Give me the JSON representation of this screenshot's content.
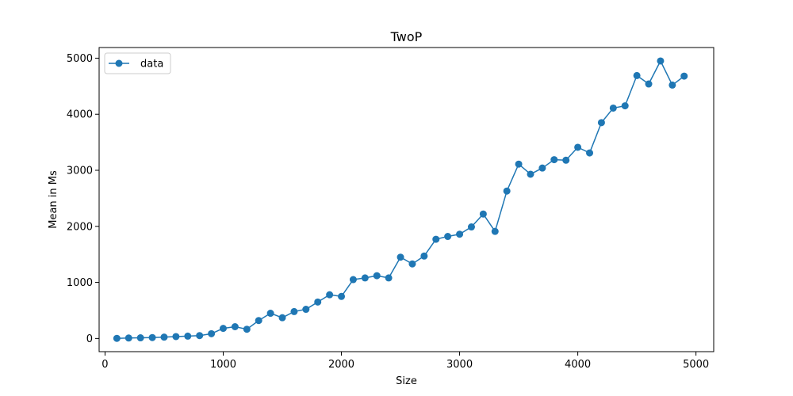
{
  "chart_data": {
    "type": "line",
    "title": "TwoP",
    "xlabel": "Size",
    "ylabel": "Mean in Ms",
    "xlim": [
      -50,
      5150
    ],
    "ylim": [
      -235,
      5190
    ],
    "xticks": [
      0,
      1000,
      2000,
      3000,
      4000,
      5000
    ],
    "xtick_labels": [
      "0",
      "1000",
      "2000",
      "3000",
      "4000",
      "5000"
    ],
    "yticks": [
      0,
      1000,
      2000,
      3000,
      4000,
      5000
    ],
    "ytick_labels": [
      "0",
      "1000",
      "2000",
      "3000",
      "4000",
      "5000"
    ],
    "grid": false,
    "legend_position": "top-left",
    "color": "#1f77b4",
    "series": [
      {
        "name": "data",
        "marker": "circle",
        "x": [
          100,
          200,
          300,
          400,
          500,
          600,
          700,
          800,
          900,
          1000,
          1100,
          1200,
          1300,
          1400,
          1500,
          1600,
          1700,
          1800,
          1900,
          2000,
          2100,
          2200,
          2300,
          2400,
          2500,
          2600,
          2700,
          2800,
          2900,
          3000,
          3100,
          3200,
          3300,
          3400,
          3500,
          3600,
          3700,
          3800,
          3900,
          4000,
          4100,
          4200,
          4300,
          4400,
          4500,
          4600,
          4700,
          4800,
          4900
        ],
        "y": [
          2,
          8,
          12,
          16,
          24,
          34,
          42,
          52,
          85,
          180,
          210,
          165,
          320,
          450,
          370,
          480,
          520,
          650,
          780,
          750,
          1050,
          1080,
          1120,
          1080,
          1450,
          1330,
          1470,
          1770,
          1820,
          1860,
          1990,
          2220,
          1910,
          2630,
          3110,
          2930,
          3040,
          3190,
          3180,
          3410,
          3310,
          3850,
          4110,
          4150,
          4690,
          4540,
          4950,
          4520,
          4680
        ]
      }
    ]
  }
}
